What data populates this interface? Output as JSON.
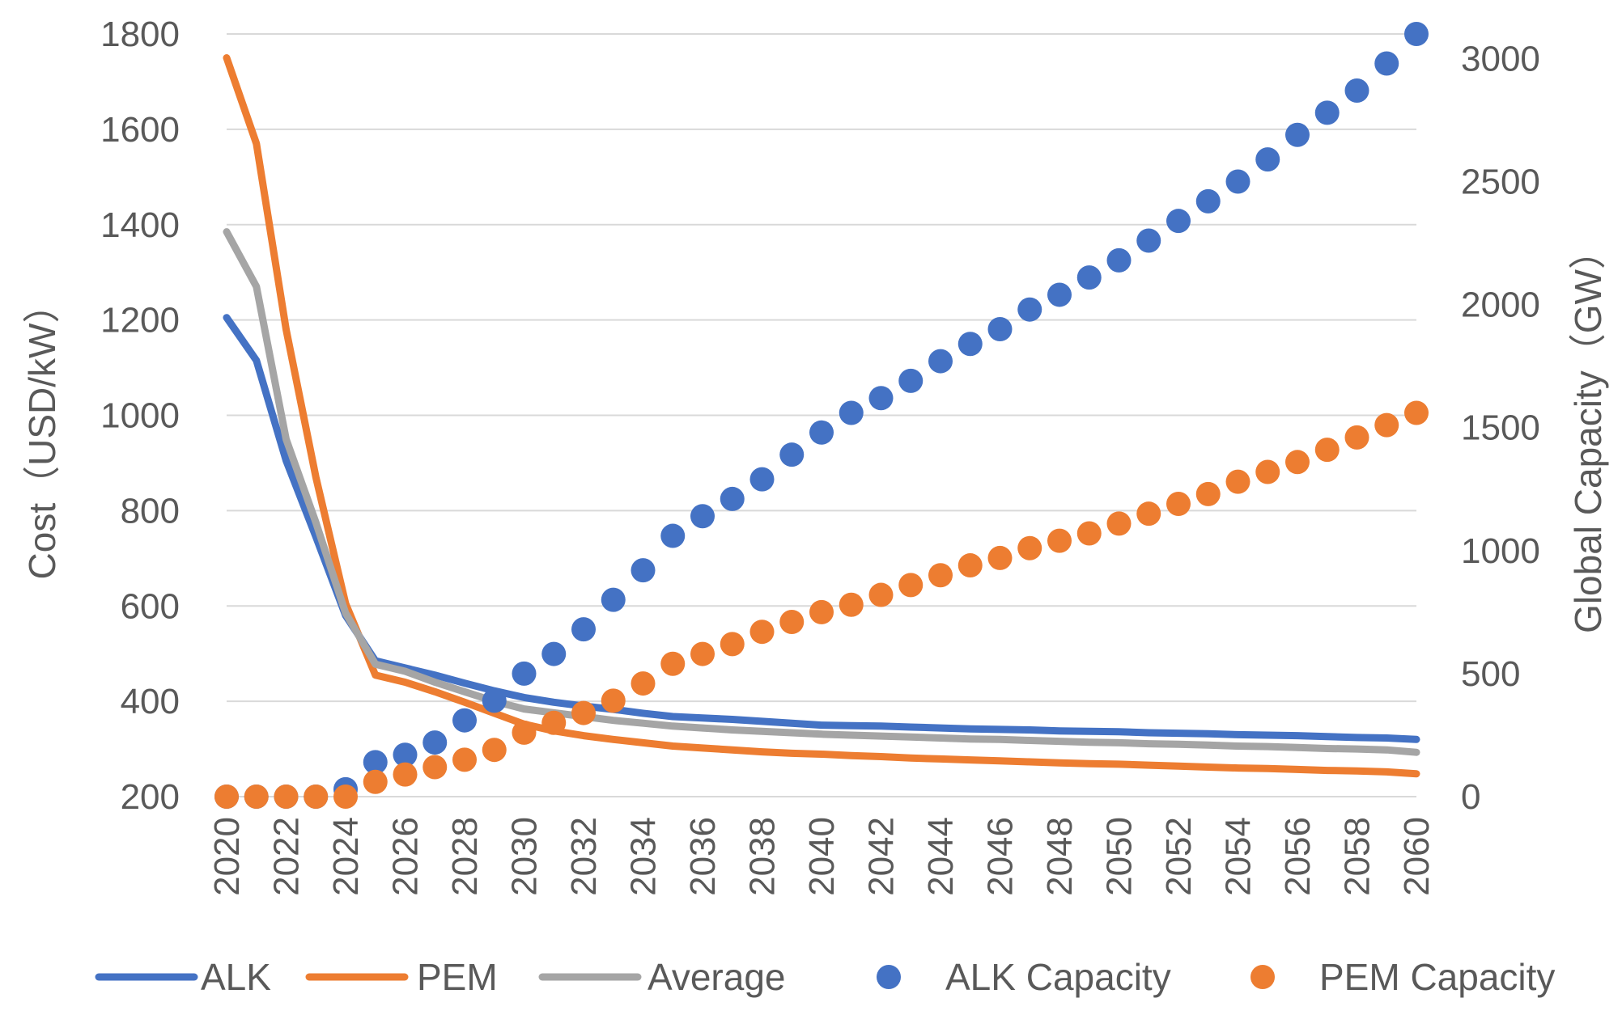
{
  "chart_data": {
    "type": "line",
    "title": "",
    "xlabel": "",
    "ylabel": "Cost（USD/kW）",
    "y2label": "Global Capacity（GW）",
    "ylim": [
      200,
      1800
    ],
    "y2lim": [
      0,
      3100
    ],
    "yticks": [
      "200",
      "400",
      "600",
      "800",
      "1000",
      "1200",
      "1400",
      "1600",
      "1800"
    ],
    "y2ticks": [
      "0",
      "500",
      "1000",
      "1500",
      "2000",
      "2500",
      "3000"
    ],
    "x": [
      2020,
      2021,
      2022,
      2023,
      2024,
      2025,
      2026,
      2027,
      2028,
      2029,
      2030,
      2031,
      2032,
      2033,
      2034,
      2035,
      2036,
      2037,
      2038,
      2039,
      2040,
      2041,
      2042,
      2043,
      2044,
      2045,
      2046,
      2047,
      2048,
      2049,
      2050,
      2051,
      2052,
      2053,
      2054,
      2055,
      2056,
      2057,
      2058,
      2059,
      2060
    ],
    "xticks": [
      "2020",
      "2022",
      "2024",
      "2026",
      "2028",
      "2030",
      "2032",
      "2034",
      "2036",
      "2038",
      "2040",
      "2042",
      "2044",
      "2046",
      "2048",
      "2050",
      "2052",
      "2054",
      "2056",
      "2058",
      "2060"
    ],
    "grid": true,
    "legend_position": "bottom",
    "series": [
      {
        "name": "ALK",
        "kind": "line",
        "axis": "left",
        "color": "#4472C4",
        "values": [
          1205,
          1115,
          905,
          745,
          580,
          485,
          470,
          455,
          438,
          422,
          408,
          398,
          390,
          383,
          375,
          368,
          365,
          362,
          358,
          354,
          350,
          349,
          348,
          346,
          344,
          342,
          341,
          340,
          338,
          337,
          336,
          334,
          333,
          332,
          330,
          329,
          328,
          326,
          324,
          323,
          320
        ]
      },
      {
        "name": "PEM",
        "kind": "line",
        "axis": "left",
        "color": "#ED7D31",
        "values": [
          1750,
          1570,
          1180,
          870,
          605,
          455,
          440,
          420,
          398,
          375,
          352,
          338,
          328,
          320,
          313,
          306,
          302,
          298,
          294,
          291,
          289,
          286,
          284,
          281,
          279,
          277,
          275,
          273,
          271,
          269,
          268,
          266,
          264,
          262,
          260,
          259,
          257,
          255,
          254,
          252,
          248
        ]
      },
      {
        "name": "Average",
        "kind": "line",
        "axis": "left",
        "color": "#A5A5A5",
        "values": [
          1385,
          1270,
          950,
          775,
          585,
          478,
          463,
          440,
          420,
          400,
          384,
          376,
          368,
          360,
          354,
          348,
          344,
          340,
          337,
          334,
          331,
          329,
          327,
          325,
          323,
          321,
          320,
          318,
          316,
          314,
          313,
          311,
          310,
          308,
          306,
          305,
          303,
          301,
          300,
          298,
          293
        ]
      },
      {
        "name": "ALK Capacity",
        "kind": "scatter",
        "axis": "right",
        "color": "#4472C4",
        "values": [
          0,
          0,
          0,
          0,
          30,
          140,
          170,
          220,
          310,
          390,
          500,
          580,
          680,
          800,
          920,
          1060,
          1140,
          1210,
          1290,
          1390,
          1480,
          1560,
          1620,
          1690,
          1770,
          1840,
          1900,
          1980,
          2040,
          2110,
          2180,
          2260,
          2340,
          2420,
          2500,
          2590,
          2690,
          2780,
          2870,
          2980,
          3100
        ]
      },
      {
        "name": "PEM Capacity",
        "kind": "scatter",
        "axis": "right",
        "color": "#ED7D31",
        "values": [
          0,
          0,
          0,
          0,
          0,
          60,
          90,
          120,
          150,
          190,
          260,
          300,
          340,
          390,
          460,
          540,
          580,
          620,
          670,
          710,
          750,
          780,
          820,
          860,
          900,
          940,
          970,
          1010,
          1040,
          1070,
          1110,
          1150,
          1190,
          1230,
          1280,
          1320,
          1360,
          1410,
          1460,
          1510,
          1560
        ]
      }
    ]
  }
}
